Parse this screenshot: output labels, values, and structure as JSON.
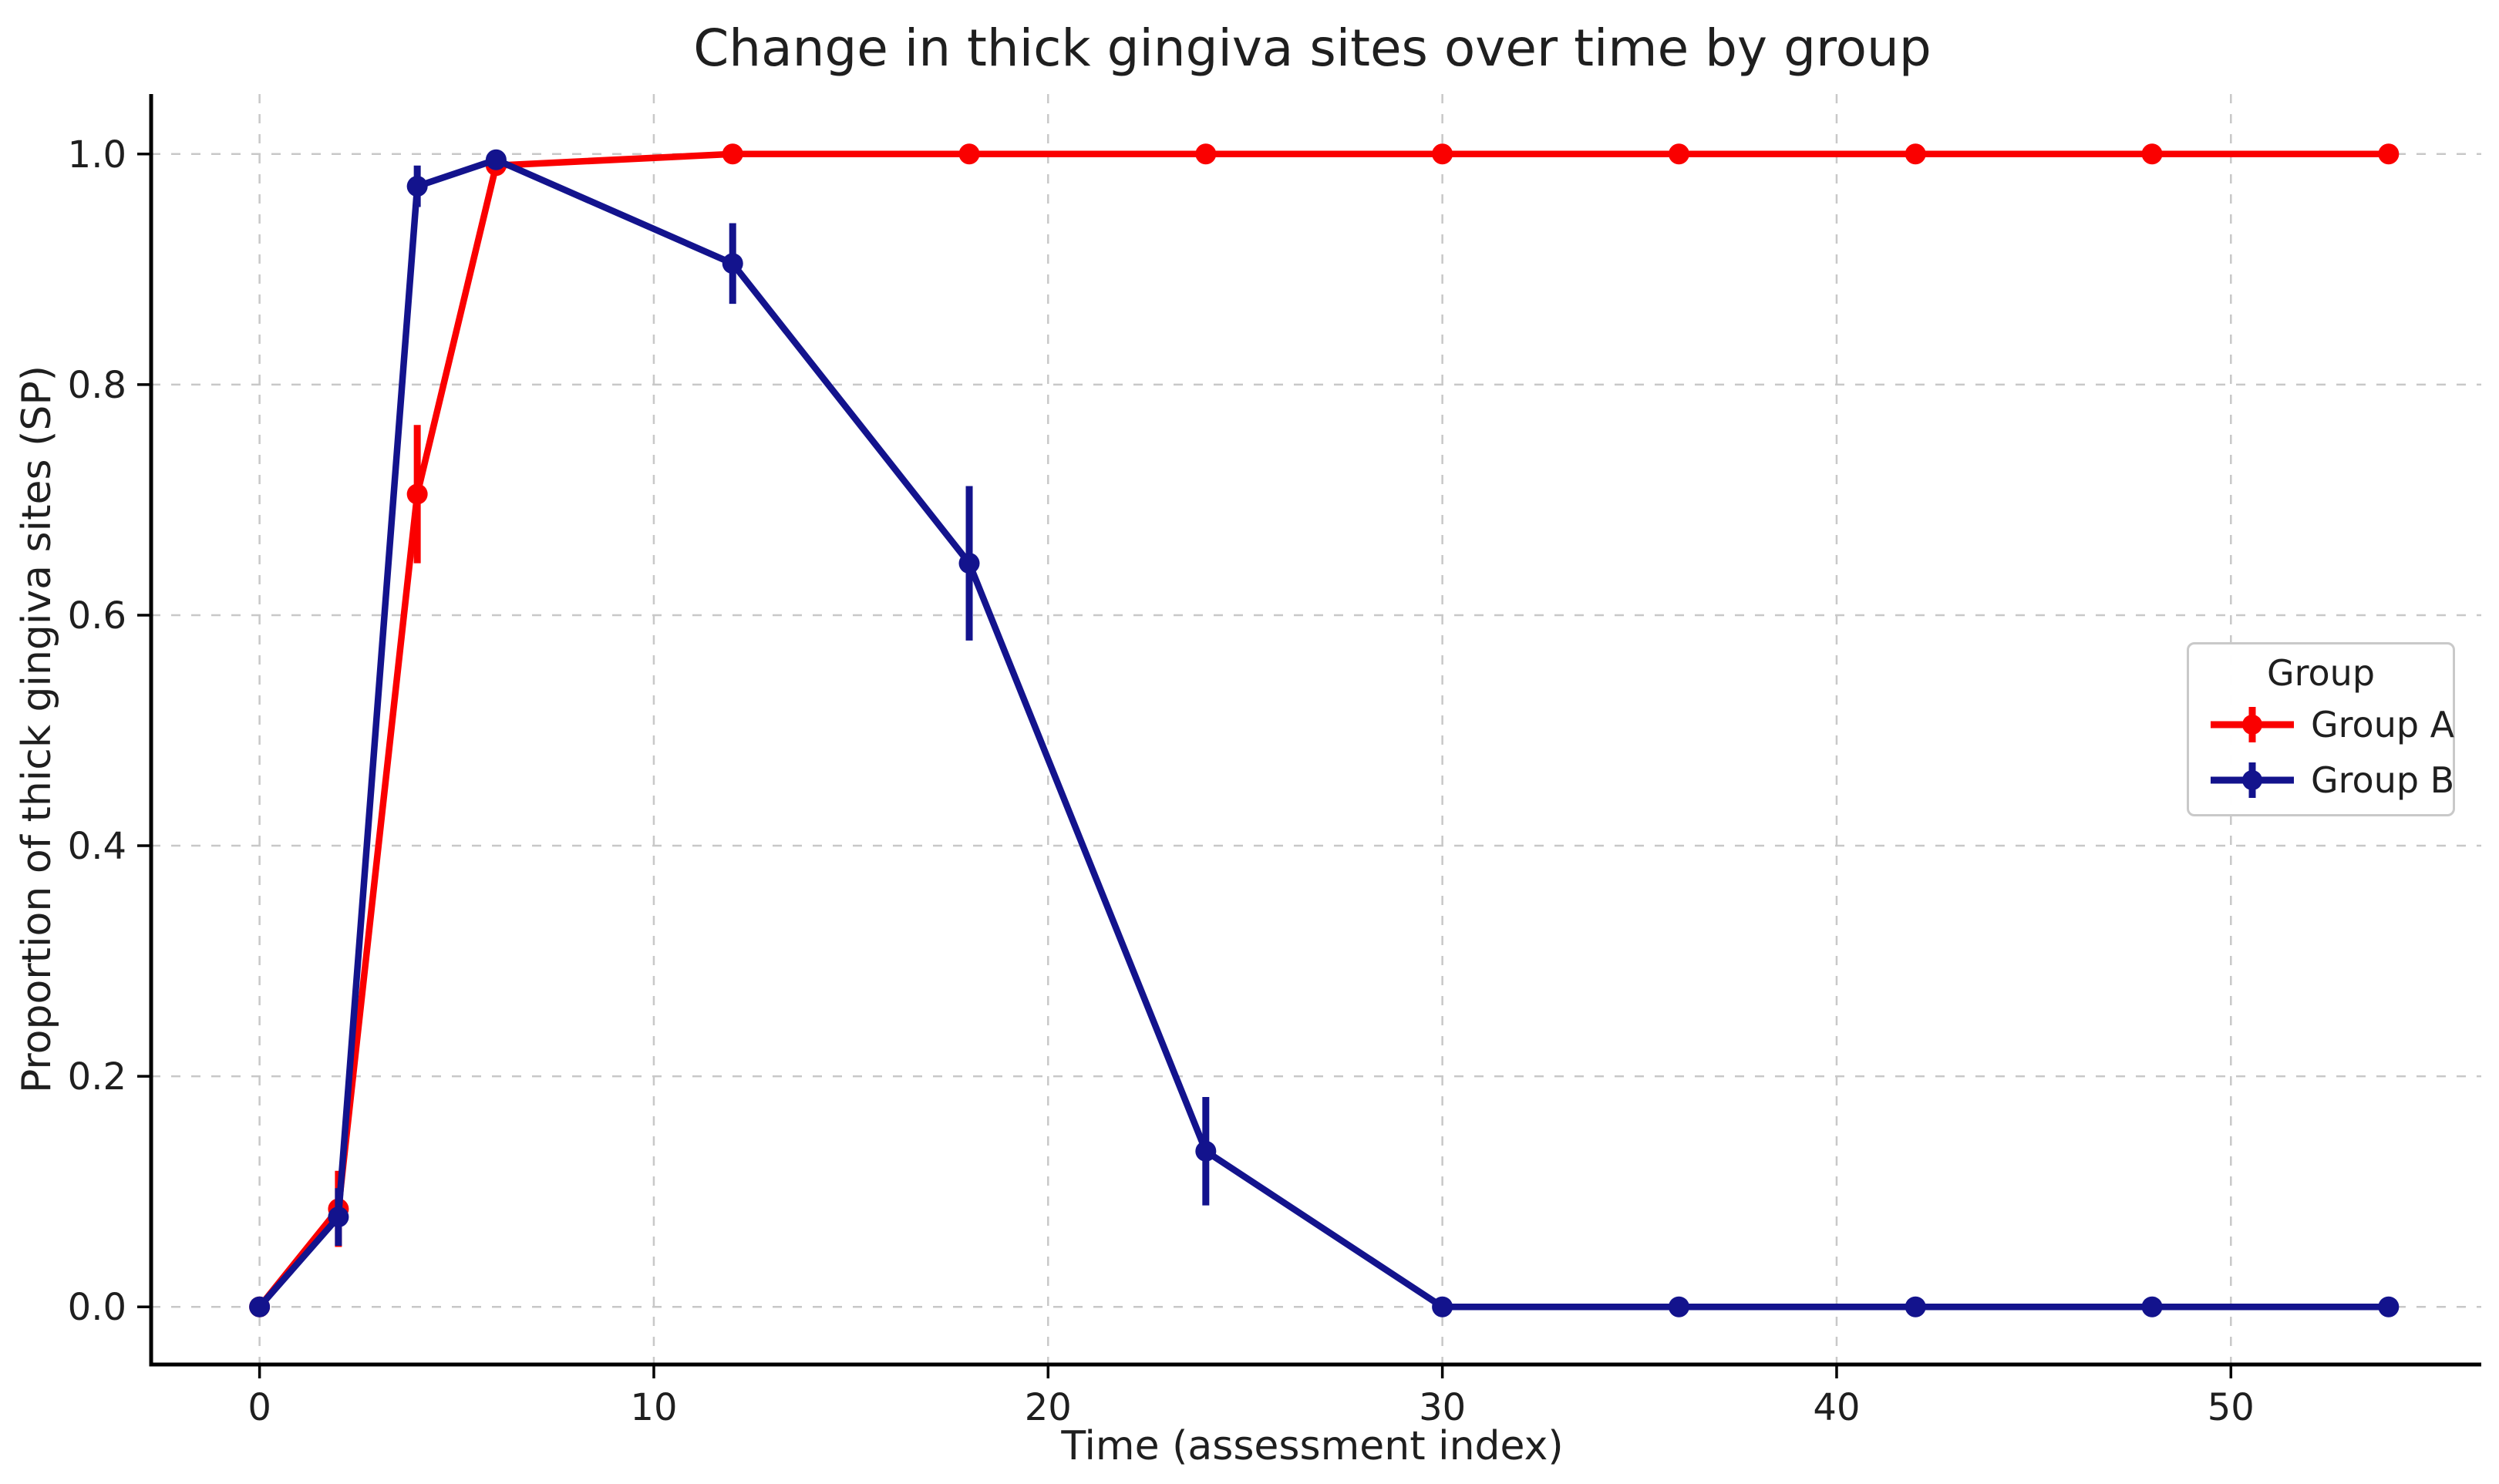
{
  "legend": {
    "title": "Group"
  },
  "colors": {
    "background": "#ffffff",
    "grid": "#c8c8c8",
    "spine": "#000000",
    "text": "#1f1f1f",
    "group_a": "#fa0000",
    "group_b": "#13138d"
  },
  "chart_data": {
    "type": "line",
    "title": "Change in thick gingiva sites over time by group",
    "xlabel": "Time (assessment index)",
    "ylabel": "Proportion of thick gingiva sites (SP)",
    "x": [
      0,
      2,
      4,
      6,
      12,
      18,
      24,
      30,
      36,
      42,
      48,
      54
    ],
    "series": [
      {
        "name": "Group A",
        "color": "#fa0000",
        "values": [
          0.0,
          0.085,
          0.705,
          0.99,
          1.0,
          1.0,
          1.0,
          1.0,
          1.0,
          1.0,
          1.0,
          1.0
        ],
        "errors": [
          0,
          0.033,
          0.06,
          0,
          0,
          0,
          0,
          0,
          0,
          0,
          0,
          0
        ]
      },
      {
        "name": "Group B",
        "color": "#13138d",
        "values": [
          0.0,
          0.078,
          0.972,
          0.995,
          0.905,
          0.645,
          0.135,
          0.0,
          0.0,
          0.0,
          0.0,
          0.0
        ],
        "errors": [
          0,
          0.025,
          0.018,
          0,
          0.035,
          0.067,
          0.047,
          0,
          0,
          0,
          0,
          0
        ]
      }
    ],
    "xticks": [
      0,
      10,
      20,
      30,
      40,
      50
    ],
    "xtick_labels": [
      "0",
      "10",
      "20",
      "30",
      "40",
      "50"
    ],
    "yticks": [
      0.0,
      0.2,
      0.4,
      0.6,
      0.8,
      1.0
    ],
    "ytick_labels": [
      "0.0",
      "0.2",
      "0.4",
      "0.6",
      "0.8",
      "1.0"
    ],
    "xlim": [
      -2.75,
      56.35
    ],
    "ylim": [
      -0.05,
      1.052
    ],
    "grid": true,
    "grid_style": "dashed",
    "legend_title": "Group",
    "legend_position": "center right",
    "error_bars": true
  }
}
